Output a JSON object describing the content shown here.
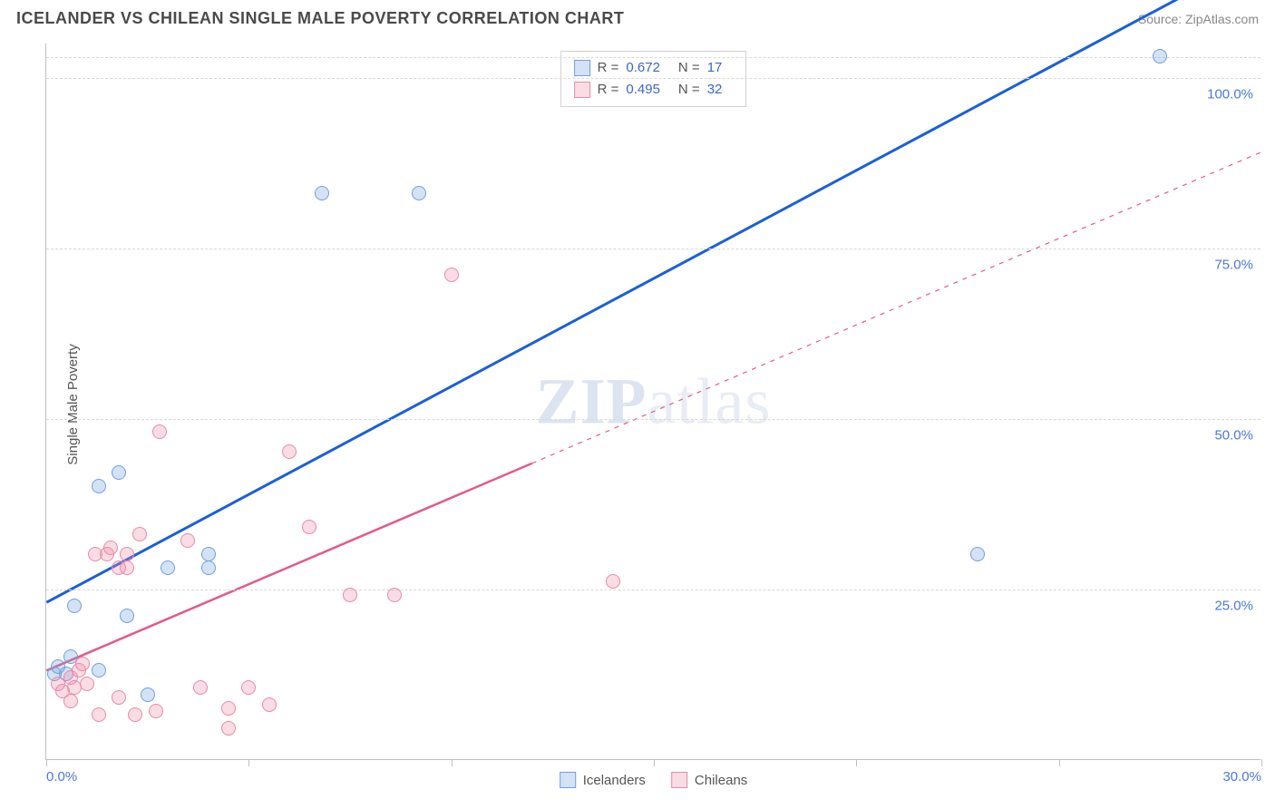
{
  "header": {
    "title": "ICELANDER VS CHILEAN SINGLE MALE POVERTY CORRELATION CHART",
    "source": "Source: ZipAtlas.com"
  },
  "watermark": {
    "pre": "ZIP",
    "post": "atlas"
  },
  "chart": {
    "type": "scatter",
    "xlim": [
      0,
      30
    ],
    "ylim": [
      0,
      105
    ],
    "xtick_step": 5,
    "ytick_step": 25,
    "xtick_labels": {
      "0": "0.0%",
      "30": "30.0%"
    },
    "ytick_labels": [
      "25.0%",
      "50.0%",
      "75.0%",
      "100.0%"
    ],
    "y_axis_title": "Single Male Poverty",
    "grid_color": "#d8d8d8",
    "axis_color": "#c0c0c0",
    "background_color": "#ffffff",
    "tick_label_color": "#4a78d6",
    "marker_radius": 8,
    "marker_stroke_width": 1.5,
    "series": [
      {
        "name": "Icelanders",
        "legend_label": "Icelanders",
        "fill": "rgba(120,165,225,0.32)",
        "stroke": "#6f9fe0",
        "stats": {
          "R": "0.672",
          "N": "17"
        },
        "trend": {
          "y_at_x0": 23,
          "y_at_x30": 118,
          "color": "#1b5fd9",
          "width": 3,
          "style": "solid"
        },
        "points": [
          [
            0.2,
            12.5
          ],
          [
            0.3,
            13.5
          ],
          [
            0.5,
            12.5
          ],
          [
            0.6,
            15
          ],
          [
            0.7,
            22.5
          ],
          [
            1.3,
            40
          ],
          [
            1.8,
            42
          ],
          [
            1.3,
            13
          ],
          [
            2.0,
            21
          ],
          [
            3.0,
            28
          ],
          [
            2.5,
            9.5
          ],
          [
            4.0,
            30
          ],
          [
            4.0,
            28
          ],
          [
            6.8,
            83
          ],
          [
            9.2,
            83
          ],
          [
            23.0,
            30
          ],
          [
            27.5,
            103
          ]
        ]
      },
      {
        "name": "Chileans",
        "legend_label": "Chileans",
        "fill": "rgba(240,140,170,0.30)",
        "stroke": "#e88aa8",
        "stats": {
          "R": "0.495",
          "N": "32"
        },
        "trend": {
          "y_at_x0": 13,
          "y_at_x30": 89,
          "color": "#e35b85",
          "width": 2.5,
          "style": "solid",
          "dash_after_x": 12
        },
        "points": [
          [
            0.3,
            11
          ],
          [
            0.4,
            10
          ],
          [
            0.6,
            12
          ],
          [
            0.7,
            10.5
          ],
          [
            0.8,
            13
          ],
          [
            0.6,
            8.5
          ],
          [
            0.9,
            14
          ],
          [
            1.0,
            11
          ],
          [
            1.2,
            30
          ],
          [
            1.3,
            6.5
          ],
          [
            1.5,
            30
          ],
          [
            1.6,
            31
          ],
          [
            1.8,
            28
          ],
          [
            1.8,
            9
          ],
          [
            2.0,
            30
          ],
          [
            2.0,
            28
          ],
          [
            2.2,
            6.5
          ],
          [
            2.3,
            33
          ],
          [
            2.7,
            7
          ],
          [
            2.8,
            48
          ],
          [
            3.5,
            32
          ],
          [
            3.8,
            10.5
          ],
          [
            4.5,
            7.5
          ],
          [
            5.0,
            10.5
          ],
          [
            5.5,
            8
          ],
          [
            6.5,
            34
          ],
          [
            6.0,
            45
          ],
          [
            7.5,
            24
          ],
          [
            8.6,
            24
          ],
          [
            10.0,
            71
          ],
          [
            14.0,
            26
          ],
          [
            4.5,
            4.5
          ]
        ]
      }
    ]
  },
  "stats_box": {
    "rows": [
      {
        "swatch_fill": "rgba(120,165,225,0.32)",
        "swatch_stroke": "#6f9fe0",
        "R_label": "R =",
        "R": "0.672",
        "N_label": "N =",
        "N": "17"
      },
      {
        "swatch_fill": "rgba(240,140,170,0.30)",
        "swatch_stroke": "#e88aa8",
        "R_label": "R =",
        "R": "0.495",
        "N_label": "N =",
        "N": "32"
      }
    ]
  },
  "legend": {
    "items": [
      {
        "swatch_fill": "rgba(120,165,225,0.32)",
        "swatch_stroke": "#6f9fe0",
        "label": "Icelanders"
      },
      {
        "swatch_fill": "rgba(240,140,170,0.30)",
        "swatch_stroke": "#e88aa8",
        "label": "Chileans"
      }
    ]
  }
}
